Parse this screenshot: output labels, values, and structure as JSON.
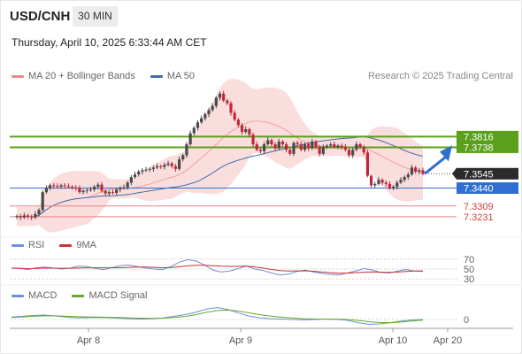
{
  "header": {
    "symbol": "USD/CNH",
    "timeframe": "30 MIN",
    "datetime": "Thursday, April 10, 2025 6:33:44 AM CET"
  },
  "legend": {
    "ma20_bb": "MA 20 + Bollinger Bands",
    "ma50": "MA 50",
    "credit": "Research © 2025 Trading Central"
  },
  "rsi_legend": {
    "rsi": "RSI",
    "ma9": "9MA"
  },
  "macd_legend": {
    "macd": "MACD",
    "signal": "MACD Signal"
  },
  "colors": {
    "up": "#4a4a4a",
    "down": "#c0283a",
    "bollinger_fill": "#f8d2d2",
    "ma20": "#f2a0a0",
    "ma50": "#3f6ea8",
    "green_level": "#5aa01a",
    "blue_level": "#2f6fd1",
    "red_level": "#f08080",
    "arrow": "#2f6fd1",
    "rsi": "#6f8fd6",
    "rsi_ma": "#d03030",
    "macd": "#6f8fd6",
    "macd_signal": "#66a82a"
  },
  "chart_data": [
    {
      "type": "candlestick",
      "x_axis_labels": [
        "Apr 8",
        "Apr 9",
        "Apr 10",
        "Apr 20"
      ],
      "price_levels": [
        {
          "label": "7.3816",
          "value": 7.3816,
          "kind": "resistance"
        },
        {
          "label": "7.3738",
          "value": 7.3738,
          "kind": "resistance"
        },
        {
          "label": "7.3545",
          "value": 7.3545,
          "kind": "last"
        },
        {
          "label": "7.3440",
          "value": 7.344,
          "kind": "support"
        },
        {
          "label": "7.3309",
          "value": 7.3309,
          "kind": "support"
        },
        {
          "label": "7.3231",
          "value": 7.3231,
          "kind": "support"
        }
      ],
      "ylim": [
        7.312,
        7.42
      ],
      "closes": [
        7.3235,
        7.3225,
        7.324,
        7.323,
        7.3225,
        7.325,
        7.328,
        7.341,
        7.344,
        7.346,
        7.3455,
        7.345,
        7.346,
        7.3455,
        7.345,
        7.3445,
        7.344,
        7.341,
        7.342,
        7.3425,
        7.343,
        7.345,
        7.3465,
        7.342,
        7.34,
        7.341,
        7.3405,
        7.343,
        7.344,
        7.3445,
        7.348,
        7.352,
        7.354,
        7.356,
        7.357,
        7.3575,
        7.358,
        7.359,
        7.36,
        7.3595,
        7.361,
        7.362,
        7.36,
        7.358,
        7.365,
        7.368,
        7.376,
        7.384,
        7.388,
        7.392,
        7.395,
        7.398,
        7.401,
        7.404,
        7.41,
        7.413,
        7.408,
        7.406,
        7.399,
        7.394,
        7.39,
        7.385,
        7.387,
        7.383,
        7.376,
        7.372,
        7.371,
        7.376,
        7.379,
        7.376,
        7.373,
        7.378,
        7.376,
        7.372,
        7.369,
        7.377,
        7.376,
        7.372,
        7.376,
        7.373,
        7.378,
        7.374,
        7.369,
        7.374,
        7.375,
        7.376,
        7.374,
        7.375,
        7.374,
        7.372,
        7.368,
        7.372,
        7.376,
        7.374,
        7.37,
        7.353,
        7.346,
        7.347,
        7.35,
        7.348,
        7.347,
        7.344,
        7.345,
        7.348,
        7.35,
        7.352,
        7.354,
        7.359,
        7.356,
        7.357,
        7.3545
      ],
      "last_value": 7.3545,
      "projection": {
        "from": 7.3545,
        "to": 7.379
      }
    },
    {
      "type": "line",
      "name": "RSI",
      "ylim": [
        25,
        75
      ],
      "reference_levels": [
        70,
        50,
        30
      ],
      "values": [
        52,
        51,
        49,
        53,
        54,
        52,
        50,
        52,
        56,
        55,
        51,
        49,
        53,
        57,
        58,
        55,
        52,
        50,
        49,
        55,
        64,
        69,
        66,
        58,
        48,
        44,
        46,
        51,
        56,
        50,
        47,
        42,
        38,
        40,
        45,
        48,
        44,
        41,
        39,
        38,
        42,
        46,
        51,
        48,
        43,
        42,
        46,
        49,
        46,
        45
      ]
    },
    {
      "type": "line",
      "name": "MACD",
      "reference_levels": [
        0
      ],
      "series": [
        {
          "name": "MACD",
          "values": [
            0.003,
            0.004,
            0.005,
            0.0055,
            0.0045,
            0.003,
            0.002,
            0.0022,
            0.0025,
            0.0022,
            0.0015,
            0.001,
            0.0005,
            0.001,
            0.002,
            0.004,
            0.006,
            0.009,
            0.013,
            0.015,
            0.0125,
            0.008,
            0.004,
            0.002,
            0.001,
            0.0005,
            0.0,
            -0.0005,
            0.0,
            0.0005,
            0.0002,
            -0.001,
            -0.004,
            -0.006,
            -0.0055,
            -0.004,
            -0.002,
            -0.0005,
            0.0
          ]
        },
        {
          "name": "MACD Signal",
          "values": [
            0.0025,
            0.0032,
            0.004,
            0.0046,
            0.0046,
            0.0042,
            0.0036,
            0.0032,
            0.003,
            0.0028,
            0.0025,
            0.002,
            0.0016,
            0.0014,
            0.0016,
            0.0025,
            0.0038,
            0.006,
            0.009,
            0.0112,
            0.0118,
            0.0105,
            0.0082,
            0.006,
            0.0042,
            0.0028,
            0.0018,
            0.001,
            0.0006,
            0.0005,
            0.0004,
            0.0,
            -0.0012,
            -0.0028,
            -0.0038,
            -0.004,
            -0.0032,
            -0.0018,
            -0.0008
          ]
        }
      ]
    }
  ]
}
